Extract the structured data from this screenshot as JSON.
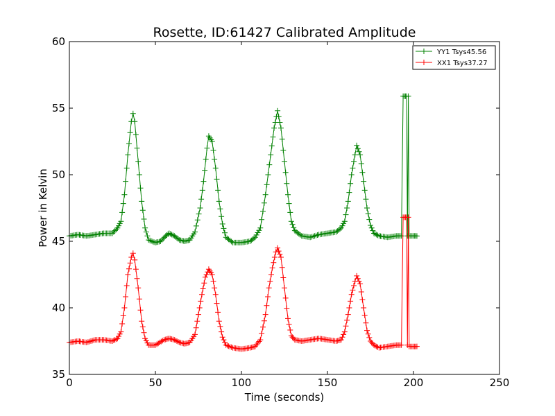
{
  "chart_data": {
    "type": "line",
    "title": "Rosette, ID:61427 Calibrated Amplitude",
    "xlabel": "Time (seconds)",
    "ylabel": "Power in Kelvin",
    "xlim": [
      0,
      250
    ],
    "ylim": [
      35,
      60
    ],
    "xticks": [
      "0",
      "50",
      "100",
      "150",
      "200",
      "250"
    ],
    "yticks": [
      "35",
      "40",
      "45",
      "50",
      "55",
      "60"
    ],
    "grid": false,
    "legend_position": "top-right",
    "marker": "plus",
    "series": [
      {
        "name": "YY1 Tsys45.56",
        "color": "#008000",
        "points": [
          [
            0,
            45.4
          ],
          [
            5,
            45.5
          ],
          [
            10,
            45.4
          ],
          [
            15,
            45.5
          ],
          [
            20,
            45.6
          ],
          [
            25,
            45.6
          ],
          [
            28,
            46.0
          ],
          [
            30,
            46.5
          ],
          [
            32,
            48.5
          ],
          [
            34,
            51.5
          ],
          [
            36,
            54.0
          ],
          [
            37,
            54.6
          ],
          [
            38,
            54.0
          ],
          [
            40,
            51.0
          ],
          [
            42,
            48.0
          ],
          [
            44,
            46.0
          ],
          [
            46,
            45.1
          ],
          [
            50,
            44.9
          ],
          [
            53,
            45.0
          ],
          [
            56,
            45.4
          ],
          [
            58,
            45.6
          ],
          [
            61,
            45.4
          ],
          [
            64,
            45.1
          ],
          [
            67,
            45.0
          ],
          [
            70,
            45.1
          ],
          [
            73,
            45.7
          ],
          [
            76,
            47.5
          ],
          [
            78,
            49.5
          ],
          [
            80,
            52.0
          ],
          [
            81,
            52.9
          ],
          [
            83,
            52.5
          ],
          [
            85,
            50.5
          ],
          [
            87,
            48.0
          ],
          [
            89,
            46.3
          ],
          [
            91,
            45.3
          ],
          [
            95,
            44.9
          ],
          [
            100,
            44.9
          ],
          [
            105,
            45.0
          ],
          [
            108,
            45.3
          ],
          [
            111,
            46.0
          ],
          [
            114,
            48.5
          ],
          [
            117,
            51.5
          ],
          [
            119,
            53.5
          ],
          [
            121,
            54.8
          ],
          [
            123,
            53.5
          ],
          [
            125,
            51.0
          ],
          [
            127,
            48.5
          ],
          [
            129,
            46.5
          ],
          [
            131,
            45.8
          ],
          [
            135,
            45.4
          ],
          [
            140,
            45.3
          ],
          [
            145,
            45.5
          ],
          [
            150,
            45.6
          ],
          [
            155,
            45.7
          ],
          [
            158,
            46.0
          ],
          [
            160,
            46.5
          ],
          [
            162,
            48.0
          ],
          [
            164,
            50.0
          ],
          [
            166,
            51.5
          ],
          [
            167,
            52.2
          ],
          [
            169,
            51.5
          ],
          [
            171,
            49.5
          ],
          [
            173,
            47.5
          ],
          [
            175,
            46.2
          ],
          [
            177,
            45.6
          ],
          [
            180,
            45.4
          ],
          [
            185,
            45.3
          ],
          [
            190,
            45.4
          ],
          [
            193,
            45.4
          ],
          [
            194,
            55.9
          ],
          [
            196,
            55.9
          ],
          [
            196.5,
            45.4
          ],
          [
            197,
            55.9
          ],
          [
            197.5,
            45.4
          ],
          [
            200,
            45.4
          ],
          [
            202,
            45.4
          ]
        ]
      },
      {
        "name": "XX1 Tsys37.27",
        "color": "#ff0000",
        "points": [
          [
            0,
            37.4
          ],
          [
            5,
            37.5
          ],
          [
            10,
            37.4
          ],
          [
            15,
            37.6
          ],
          [
            20,
            37.6
          ],
          [
            25,
            37.5
          ],
          [
            28,
            37.7
          ],
          [
            30,
            38.2
          ],
          [
            32,
            40.0
          ],
          [
            34,
            42.5
          ],
          [
            36,
            43.8
          ],
          [
            37,
            44.1
          ],
          [
            38,
            43.6
          ],
          [
            40,
            41.5
          ],
          [
            42,
            39.0
          ],
          [
            44,
            37.7
          ],
          [
            46,
            37.2
          ],
          [
            50,
            37.2
          ],
          [
            55,
            37.6
          ],
          [
            58,
            37.7
          ],
          [
            61,
            37.6
          ],
          [
            64,
            37.4
          ],
          [
            67,
            37.3
          ],
          [
            70,
            37.4
          ],
          [
            73,
            38.0
          ],
          [
            75,
            39.5
          ],
          [
            77,
            41.0
          ],
          [
            79,
            42.3
          ],
          [
            81,
            42.9
          ],
          [
            83,
            42.5
          ],
          [
            85,
            41.0
          ],
          [
            87,
            39.0
          ],
          [
            89,
            37.8
          ],
          [
            91,
            37.2
          ],
          [
            95,
            37.0
          ],
          [
            100,
            36.9
          ],
          [
            105,
            37.0
          ],
          [
            108,
            37.1
          ],
          [
            111,
            37.6
          ],
          [
            114,
            39.5
          ],
          [
            116,
            41.5
          ],
          [
            118,
            43.0
          ],
          [
            120,
            44.2
          ],
          [
            121,
            44.5
          ],
          [
            123,
            43.8
          ],
          [
            125,
            41.5
          ],
          [
            127,
            39.2
          ],
          [
            129,
            37.9
          ],
          [
            131,
            37.6
          ],
          [
            135,
            37.5
          ],
          [
            140,
            37.6
          ],
          [
            145,
            37.7
          ],
          [
            150,
            37.6
          ],
          [
            155,
            37.5
          ],
          [
            158,
            37.6
          ],
          [
            160,
            38.2
          ],
          [
            162,
            39.5
          ],
          [
            164,
            41.0
          ],
          [
            166,
            42.0
          ],
          [
            167,
            42.4
          ],
          [
            169,
            41.8
          ],
          [
            171,
            40.0
          ],
          [
            173,
            38.3
          ],
          [
            175,
            37.5
          ],
          [
            177,
            37.2
          ],
          [
            180,
            37.0
          ],
          [
            185,
            37.1
          ],
          [
            190,
            37.2
          ],
          [
            193,
            37.2
          ],
          [
            194,
            46.8
          ],
          [
            196,
            46.8
          ],
          [
            196.5,
            37.2
          ],
          [
            197,
            46.8
          ],
          [
            197.5,
            37.1
          ],
          [
            200,
            37.1
          ],
          [
            202,
            37.1
          ]
        ]
      }
    ]
  }
}
